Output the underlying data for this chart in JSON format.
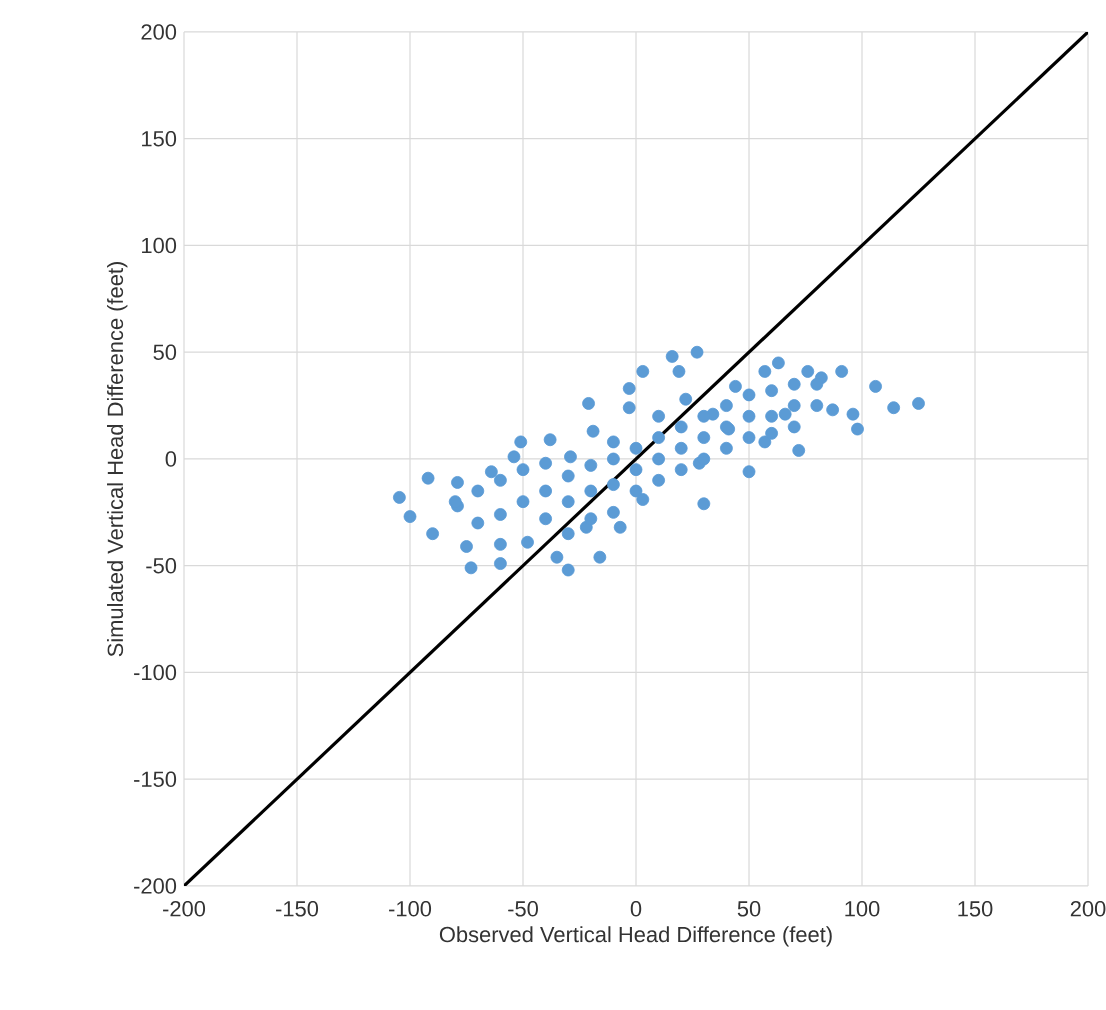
{
  "chart_data": {
    "type": "scatter",
    "xlabel": "Observed Vertical Head Difference (feet)",
    "ylabel": "Simulated Vertical Head Difference (feet)",
    "xlim": [
      -200,
      200
    ],
    "ylim": [
      -200,
      200
    ],
    "xticks": [
      -200,
      -150,
      -100,
      -50,
      0,
      50,
      100,
      150,
      200
    ],
    "yticks": [
      -200,
      -150,
      -100,
      -50,
      0,
      50,
      100,
      150,
      200
    ],
    "grid": true,
    "series": [
      {
        "marker": "circle",
        "color": "#5b9bd5",
        "x": [
          -104.7,
          -100,
          -92,
          -90,
          -79,
          -79,
          -75,
          -73,
          -64,
          -60,
          -60,
          -54,
          -51,
          -48,
          -38,
          -35,
          -30,
          -29,
          -22,
          -19,
          -16,
          -21,
          -10,
          -7,
          -3,
          -3,
          3,
          3,
          16,
          19,
          27,
          22,
          28,
          30,
          34,
          41,
          44,
          50,
          57,
          57,
          63,
          66,
          72,
          76,
          82,
          87,
          91,
          96,
          98,
          106,
          114,
          125,
          -60,
          -50,
          -50,
          -40,
          -40,
          -40,
          -30,
          -30,
          -30,
          -20,
          -20,
          -20,
          -10,
          -10,
          -10,
          0,
          0,
          0,
          10,
          10,
          10,
          10,
          20,
          20,
          20,
          30,
          30,
          30,
          40,
          40,
          40,
          50,
          50,
          50,
          60,
          60,
          60,
          70,
          70,
          70,
          80,
          80,
          -70,
          -70,
          -80,
          -60
        ],
        "values": [
          -18,
          -27,
          -9,
          -35,
          -11,
          -22,
          -41,
          -51,
          -6,
          -26,
          -49,
          1,
          8,
          -39,
          9,
          -46,
          -52,
          1,
          -32,
          13,
          -46,
          26,
          8,
          -32,
          24,
          33,
          41,
          -19,
          48,
          41,
          50,
          28,
          -2,
          -21,
          21,
          14,
          34,
          -6,
          41,
          8,
          45,
          21,
          4,
          41,
          38,
          23,
          41,
          21,
          14,
          34,
          24,
          26,
          -10,
          -5,
          -20,
          -2,
          -15,
          -28,
          -8,
          -20,
          -35,
          -3,
          -15,
          -28,
          0,
          -12,
          -25,
          5,
          -5,
          -15,
          10,
          0,
          -10,
          20,
          15,
          5,
          -5,
          20,
          10,
          0,
          25,
          15,
          5,
          30,
          20,
          10,
          32,
          20,
          12,
          35,
          25,
          15,
          35,
          25,
          -15,
          -30,
          -20,
          -40
        ]
      },
      {
        "type": "line",
        "color": "#000000",
        "x": [
          -200,
          200
        ],
        "values": [
          -200,
          200
        ]
      }
    ]
  }
}
